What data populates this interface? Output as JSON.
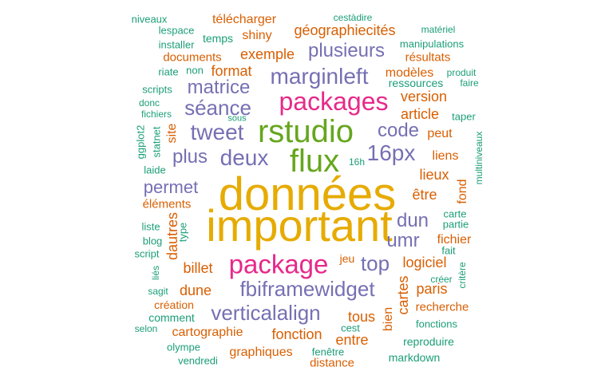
{
  "colors": {
    "green": "#1b9e77",
    "orange": "#d95f02",
    "purple": "#7570b3",
    "pink": "#e7298a",
    "lime": "#66a61e",
    "gold": "#e6ab02"
  },
  "words": [
    {
      "text": "données",
      "color": "gold"
    },
    {
      "text": "important",
      "color": "gold"
    },
    {
      "text": "rstudio",
      "color": "lime"
    },
    {
      "text": "flux",
      "color": "lime"
    },
    {
      "text": "packages",
      "color": "pink"
    },
    {
      "text": "package",
      "color": "pink"
    },
    {
      "text": "marginleft",
      "color": "purple"
    },
    {
      "text": "séance",
      "color": "purple"
    },
    {
      "text": "matrice",
      "color": "purple"
    },
    {
      "text": "tweet",
      "color": "purple"
    },
    {
      "text": "deux",
      "color": "purple"
    },
    {
      "text": "16px",
      "color": "purple"
    },
    {
      "text": "code",
      "color": "purple"
    },
    {
      "text": "plus",
      "color": "purple"
    },
    {
      "text": "verticalalign",
      "color": "purple"
    },
    {
      "text": "fbiframewidget",
      "color": "purple"
    },
    {
      "text": "top",
      "color": "purple"
    },
    {
      "text": "umr",
      "color": "purple"
    },
    {
      "text": "dun",
      "color": "purple"
    },
    {
      "text": "permet",
      "color": "purple"
    },
    {
      "text": "plusieurs",
      "color": "purple"
    },
    {
      "text": "exemple",
      "color": "orange"
    },
    {
      "text": "géographiecités",
      "color": "orange"
    },
    {
      "text": "télécharger",
      "color": "orange"
    },
    {
      "text": "shiny",
      "color": "orange"
    },
    {
      "text": "format",
      "color": "orange"
    },
    {
      "text": "documents",
      "color": "orange"
    },
    {
      "text": "version",
      "color": "orange"
    },
    {
      "text": "article",
      "color": "orange"
    },
    {
      "text": "peut",
      "color": "orange"
    },
    {
      "text": "liens",
      "color": "orange"
    },
    {
      "text": "lieux",
      "color": "orange"
    },
    {
      "text": "être",
      "color": "orange"
    },
    {
      "text": "fichier",
      "color": "orange"
    },
    {
      "text": "logiciel",
      "color": "orange"
    },
    {
      "text": "paris",
      "color": "orange"
    },
    {
      "text": "billet",
      "color": "orange"
    },
    {
      "text": "dune",
      "color": "orange"
    },
    {
      "text": "tous",
      "color": "orange"
    },
    {
      "text": "fonction",
      "color": "orange"
    },
    {
      "text": "entre",
      "color": "orange"
    },
    {
      "text": "cartographie",
      "color": "orange"
    },
    {
      "text": "graphiques",
      "color": "orange"
    },
    {
      "text": "distance",
      "color": "orange"
    },
    {
      "text": "recherche",
      "color": "orange"
    },
    {
      "text": "création",
      "color": "orange"
    },
    {
      "text": "éléments",
      "color": "orange"
    },
    {
      "text": "dautres",
      "color": "orange"
    },
    {
      "text": "site",
      "color": "orange"
    },
    {
      "text": "cartes",
      "color": "orange"
    },
    {
      "text": "bien",
      "color": "orange"
    },
    {
      "text": "fond",
      "color": "orange"
    },
    {
      "text": "résultats",
      "color": "orange"
    },
    {
      "text": "modèles",
      "color": "orange"
    },
    {
      "text": "ressources",
      "color": "green"
    },
    {
      "text": "niveaux",
      "color": "green"
    },
    {
      "text": "lespace",
      "color": "green"
    },
    {
      "text": "installer",
      "color": "green"
    },
    {
      "text": "temps",
      "color": "green"
    },
    {
      "text": "riate",
      "color": "green"
    },
    {
      "text": "non",
      "color": "green"
    },
    {
      "text": "scripts",
      "color": "green"
    },
    {
      "text": "donc",
      "color": "green"
    },
    {
      "text": "fichiers",
      "color": "green"
    },
    {
      "text": "sous",
      "color": "green"
    },
    {
      "text": "16h",
      "color": "green"
    },
    {
      "text": "laide",
      "color": "green"
    },
    {
      "text": "liste",
      "color": "green"
    },
    {
      "text": "blog",
      "color": "green"
    },
    {
      "text": "script",
      "color": "green"
    },
    {
      "text": "sagit",
      "color": "green"
    },
    {
      "text": "comment",
      "color": "green"
    },
    {
      "text": "selon",
      "color": "green"
    },
    {
      "text": "olympe",
      "color": "green"
    },
    {
      "text": "vendredi",
      "color": "green"
    },
    {
      "text": "fenêtre",
      "color": "green"
    },
    {
      "text": "markdown",
      "color": "green"
    },
    {
      "text": "reproduire",
      "color": "green"
    },
    {
      "text": "fonctions",
      "color": "green"
    },
    {
      "text": "cest",
      "color": "green"
    },
    {
      "text": "créer",
      "color": "green"
    },
    {
      "text": "fait",
      "color": "green"
    },
    {
      "text": "partie",
      "color": "green"
    },
    {
      "text": "carte",
      "color": "green"
    },
    {
      "text": "jeu",
      "color": "orange"
    },
    {
      "text": "manipulations",
      "color": "green"
    },
    {
      "text": "cestàdire",
      "color": "green"
    },
    {
      "text": "matériel",
      "color": "green"
    },
    {
      "text": "produit",
      "color": "green"
    },
    {
      "text": "faire",
      "color": "green"
    },
    {
      "text": "taper",
      "color": "green"
    },
    {
      "text": "ggplot2",
      "color": "green"
    },
    {
      "text": "statnet",
      "color": "green"
    },
    {
      "text": "type",
      "color": "green"
    },
    {
      "text": "liés",
      "color": "green"
    },
    {
      "text": "multiniveaux",
      "color": "green"
    },
    {
      "text": "critère",
      "color": "green"
    }
  ]
}
